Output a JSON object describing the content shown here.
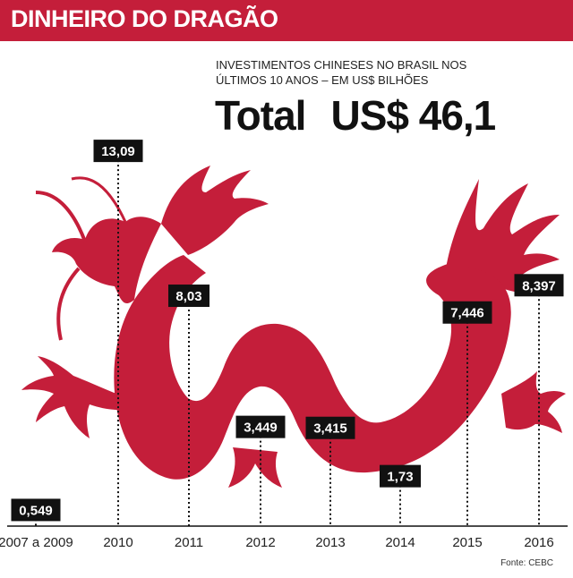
{
  "header": {
    "title": "DINHEIRO DO DRAGÃO"
  },
  "subtitle": "INVESTIMENTOS CHINESES NO BRASIL NOS ÚLTIMOS 10 ANOS – EM US$ BILHÕES",
  "total": {
    "label": "Total",
    "value": "US$ 46,1"
  },
  "source": "Fonte: CEBC",
  "colors": {
    "accent": "#c41e3a",
    "label_box": "#111111"
  },
  "chart_data": {
    "type": "bar",
    "title": "DINHEIRO DO DRAGÃO",
    "subtitle": "INVESTIMENTOS CHINESES NO BRASIL NOS ÚLTIMOS 10 ANOS – EM US$ BILHÕES",
    "categories": [
      "2007 a 2009",
      "2010",
      "2011",
      "2012",
      "2013",
      "2014",
      "2015",
      "2016"
    ],
    "values": [
      0.549,
      13.09,
      8.03,
      3.449,
      3.415,
      1.73,
      7.446,
      8.397
    ],
    "value_labels": [
      "0,549",
      "13,09",
      "8,03",
      "3,449",
      "3,415",
      "1,73",
      "7,446",
      "8,397"
    ],
    "ylim": [
      0,
      14
    ],
    "grid": false,
    "legend": "none"
  }
}
